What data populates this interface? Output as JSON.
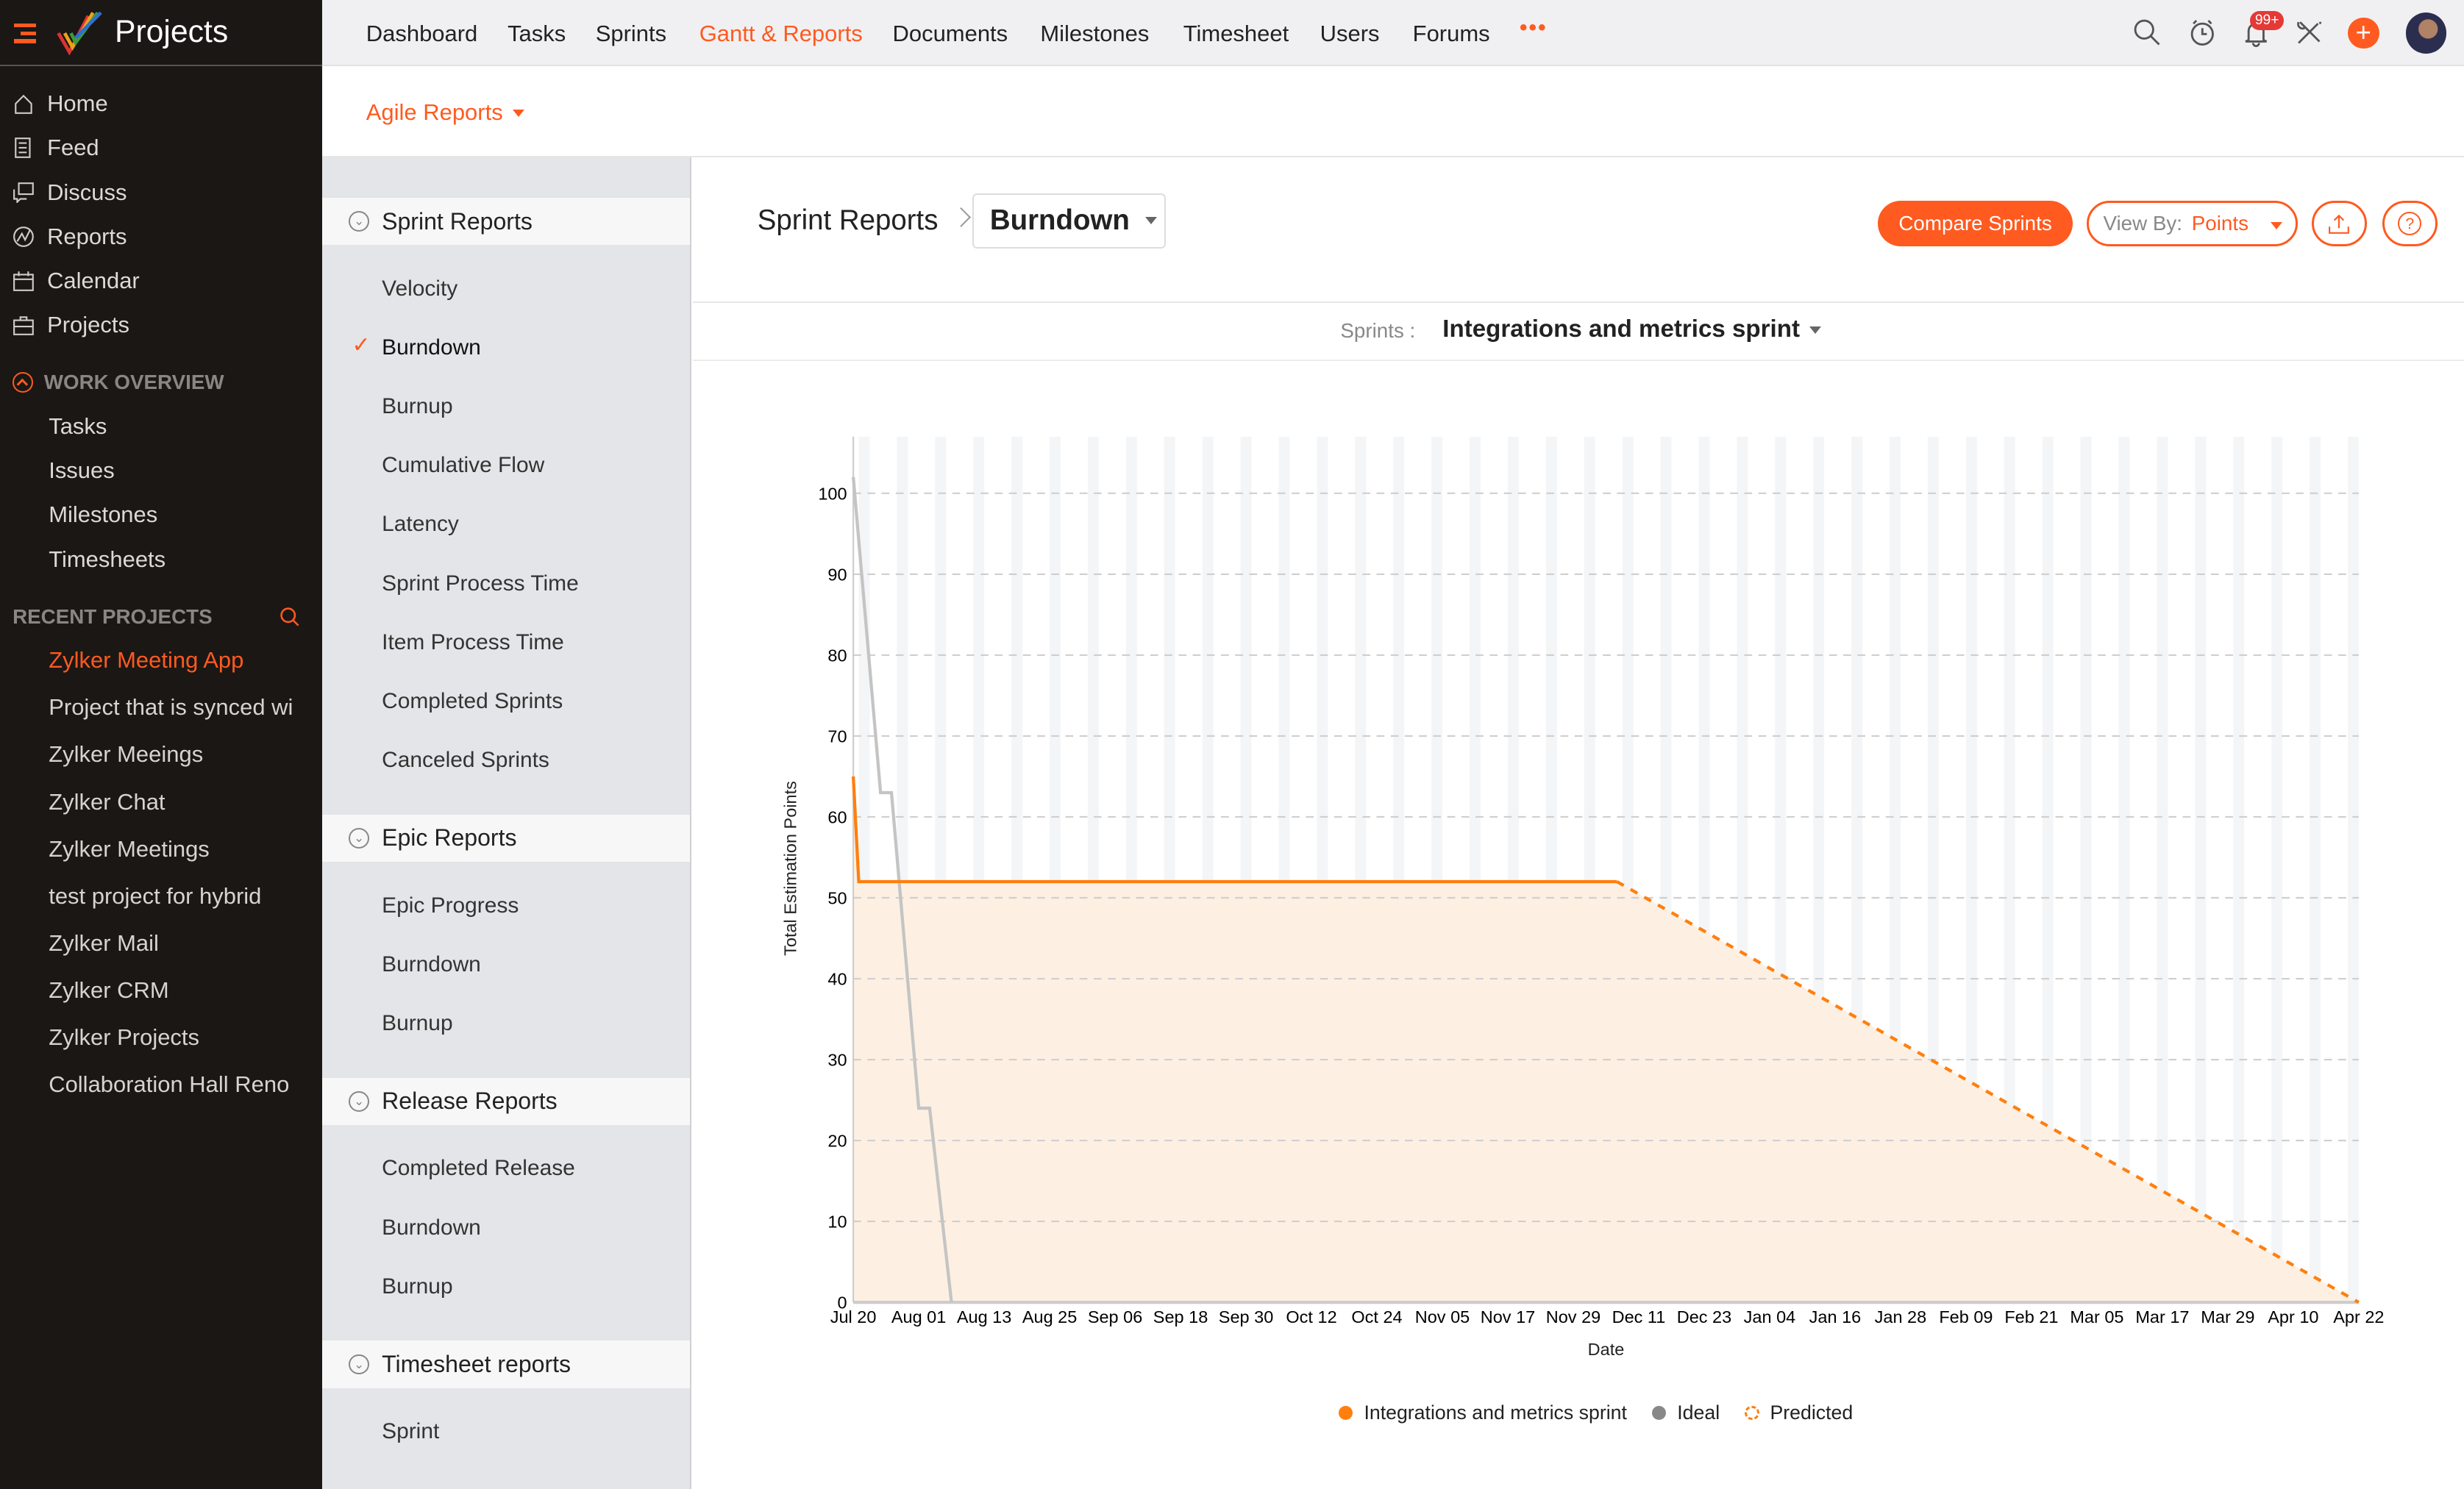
{
  "app": {
    "title": "Projects"
  },
  "sidebar": {
    "items": [
      {
        "label": "Home",
        "icon": "home-icon"
      },
      {
        "label": "Feed",
        "icon": "feed-icon"
      },
      {
        "label": "Discuss",
        "icon": "discuss-icon"
      },
      {
        "label": "Reports",
        "icon": "reports-icon"
      },
      {
        "label": "Calendar",
        "icon": "calendar-icon"
      },
      {
        "label": "Projects",
        "icon": "projects-icon"
      }
    ],
    "work_overview": {
      "label": "WORK OVERVIEW",
      "items": [
        "Tasks",
        "Issues",
        "Milestones",
        "Timesheets"
      ]
    },
    "recent": {
      "label": "RECENT PROJECTS",
      "items": [
        "Zylker Meeting App",
        "Project that is synced wi",
        "Zylker Meeings",
        "Zylker Chat",
        "Zylker Meetings",
        "test project for hybrid",
        "Zylker Mail",
        "Zylker CRM",
        "Zylker Projects",
        "Collaboration Hall Reno"
      ],
      "active_index": 0
    }
  },
  "topnav": {
    "items": [
      "Dashboard",
      "Tasks",
      "Sprints",
      "Gantt & Reports",
      "Documents",
      "Milestones",
      "Timesheet",
      "Users",
      "Forums"
    ],
    "active": "Gantt & Reports",
    "more": "•••",
    "notification_badge": "99+"
  },
  "subheader": {
    "label": "Agile Reports"
  },
  "report_nav": {
    "sections": [
      {
        "label": "Sprint Reports",
        "items": [
          "Velocity",
          "Burndown",
          "Burnup",
          "Cumulative Flow",
          "Latency",
          "Sprint Process Time",
          "Item Process Time",
          "Completed Sprints",
          "Canceled Sprints"
        ],
        "selected": "Burndown"
      },
      {
        "label": "Epic Reports",
        "items": [
          "Epic Progress",
          "Burndown",
          "Burnup"
        ]
      },
      {
        "label": "Release Reports",
        "items": [
          "Completed Release",
          "Burndown",
          "Burnup"
        ]
      },
      {
        "label": "Timesheet reports",
        "items": [
          "Sprint"
        ]
      }
    ]
  },
  "header": {
    "breadcrumb": "Sprint Reports",
    "report_select": "Burndown",
    "compare_label": "Compare Sprints",
    "view_by_label": "View By:",
    "view_by_value": "Points"
  },
  "sprint_filter": {
    "label": "Sprints :",
    "value": "Integrations and metrics sprint"
  },
  "colors": {
    "accent": "#ff5a1f",
    "actual": "#ff7f0e",
    "ideal": "#c4c4c4",
    "fill": "#fdf0e3"
  },
  "chart_data": {
    "type": "line",
    "xlabel": "Date",
    "ylabel": "Total Estimation Points",
    "ylim": [
      0,
      107
    ],
    "yticks": [
      0,
      10,
      20,
      30,
      40,
      50,
      60,
      70,
      80,
      90,
      100
    ],
    "xticks": [
      "Jul 20",
      "Aug 01",
      "Aug 13",
      "Aug 25",
      "Sep 06",
      "Sep 18",
      "Sep 30",
      "Oct 12",
      "Oct 24",
      "Nov 05",
      "Nov 17",
      "Nov 29",
      "Dec 11",
      "Dec 23",
      "Jan 04",
      "Jan 16",
      "Jan 28",
      "Feb 09",
      "Feb 21",
      "Mar 05",
      "Mar 17",
      "Mar 29",
      "Apr 10",
      "Apr 22"
    ],
    "grid": "horizontal dashed",
    "legend_position": "bottom",
    "series": [
      {
        "name": "Integrations and metrics sprint",
        "style": "solid",
        "points": [
          [
            "Jul 20",
            65
          ],
          [
            "Jul 21",
            52
          ],
          [
            "Dec 07",
            52
          ]
        ]
      },
      {
        "name": "Ideal",
        "style": "solid",
        "points": [
          [
            "Jul 20",
            102
          ],
          [
            "Jul 25",
            63
          ],
          [
            "Jul 27",
            63
          ],
          [
            "Aug 01",
            24
          ],
          [
            "Aug 03",
            24
          ],
          [
            "Aug 07",
            0
          ]
        ]
      },
      {
        "name": "Predicted",
        "style": "dashed",
        "points": [
          [
            "Dec 07",
            52
          ],
          [
            "Apr 22",
            0
          ]
        ]
      }
    ]
  }
}
